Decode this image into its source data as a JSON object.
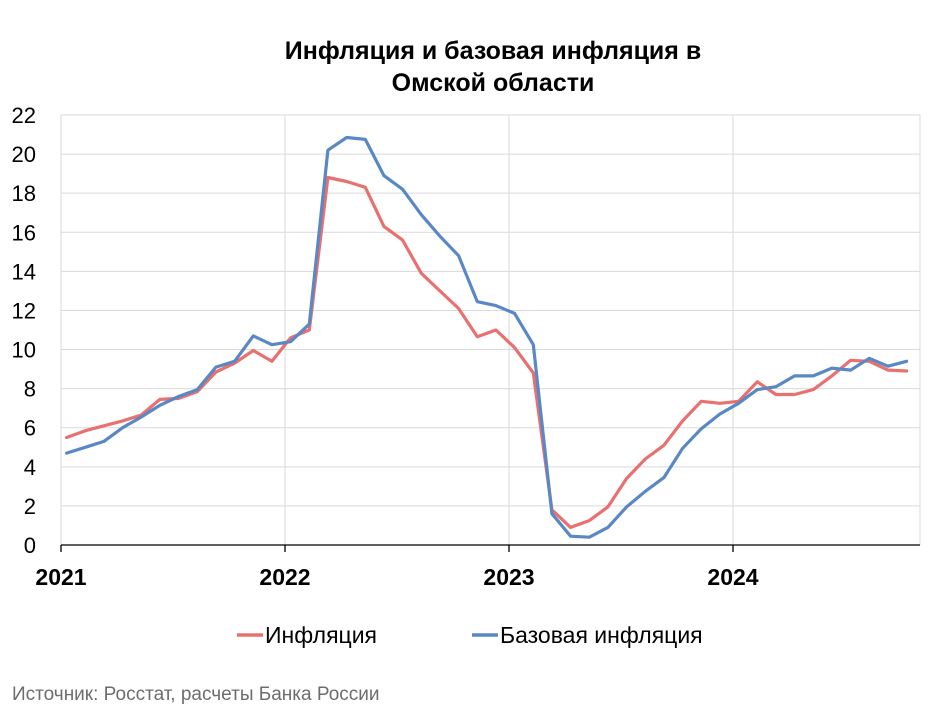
{
  "chart_data": {
    "type": "line",
    "title_lines": [
      "Инфляция и базовая инфляция в",
      "Омской области"
    ],
    "ylim": [
      0,
      22
    ],
    "yticks": [
      "0",
      "2",
      "4",
      "6",
      "8",
      "10",
      "12",
      "14",
      "16",
      "18",
      "20",
      "22"
    ],
    "xticks": [
      "2021",
      "2022",
      "2023",
      "2024"
    ],
    "x_start": "2021-01",
    "grid": true,
    "legend_position": "bottom",
    "series": [
      {
        "name": "Инфляция",
        "color": "#e8706f",
        "values": [
          5.5,
          5.85,
          6.1,
          6.35,
          6.65,
          7.45,
          7.5,
          7.85,
          8.85,
          9.3,
          9.95,
          9.4,
          10.6,
          11.0,
          18.8,
          18.6,
          18.3,
          16.3,
          15.6,
          13.9,
          13.0,
          12.1,
          10.65,
          11.0,
          10.1,
          8.8,
          1.8,
          0.9,
          1.25,
          1.95,
          3.4,
          4.4,
          5.1,
          6.35,
          7.35,
          7.25,
          7.35,
          8.35,
          7.7,
          7.7,
          7.95,
          8.65,
          9.45,
          9.4,
          8.95,
          8.9
        ]
      },
      {
        "name": "Базовая инфляция",
        "color": "#5a88c4",
        "values": [
          4.7,
          5.0,
          5.3,
          6.0,
          6.55,
          7.15,
          7.6,
          7.95,
          9.1,
          9.4,
          10.7,
          10.25,
          10.4,
          11.3,
          20.2,
          20.85,
          20.75,
          18.9,
          18.2,
          16.9,
          15.8,
          14.8,
          12.45,
          12.25,
          11.85,
          10.25,
          1.6,
          0.45,
          0.4,
          0.9,
          1.95,
          2.75,
          3.45,
          4.95,
          5.95,
          6.7,
          7.25,
          7.95,
          8.1,
          8.65,
          8.65,
          9.05,
          8.95,
          9.55,
          9.15,
          9.4
        ]
      }
    ]
  },
  "source_text": "Источник: Росстат, расчеты Банка России"
}
